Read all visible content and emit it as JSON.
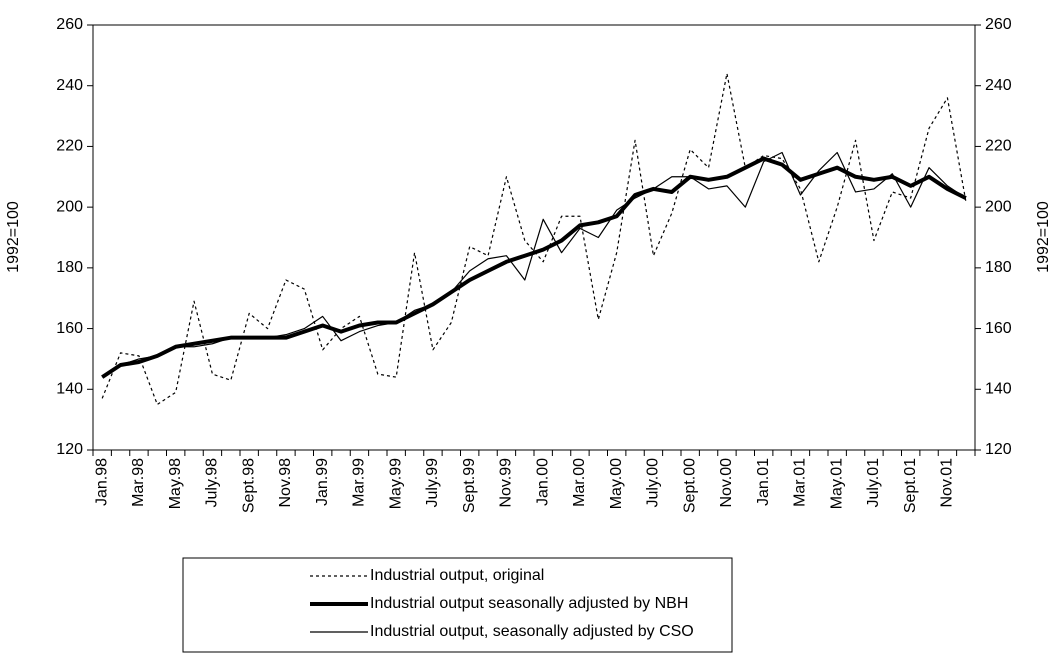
{
  "chart_data": {
    "type": "line",
    "categories": [
      "Jan.98",
      null,
      "Mar.98",
      null,
      "May.98",
      null,
      "July.98",
      null,
      "Sept.98",
      null,
      "Nov.98",
      null,
      "Jan.99",
      null,
      "Mar.99",
      null,
      "May.99",
      null,
      "July.99",
      null,
      "Sept.99",
      null,
      "Nov.99",
      null,
      "Jan.00",
      null,
      "Mar.00",
      null,
      "May.00",
      null,
      "July.00",
      null,
      "Sept.00",
      null,
      "Nov.00",
      null,
      "Jan.01",
      null,
      "Mar.01",
      null,
      "May.01",
      null,
      "July.01",
      null,
      "Sept.01",
      null,
      "Nov.01",
      null
    ],
    "ylabel": "1992=100",
    "y2label": "1992=100",
    "ylim": [
      120,
      260
    ],
    "yticks": [
      120,
      140,
      160,
      180,
      200,
      220,
      240,
      260
    ],
    "y2lim": [
      120,
      260
    ],
    "y2ticks": [
      120,
      140,
      160,
      180,
      200,
      220,
      240,
      260
    ],
    "grid": false,
    "series": [
      {
        "name": "Industrial output, original",
        "color": "#000000",
        "line_style": "dotted",
        "values": [
          137,
          152,
          151,
          135,
          139,
          169,
          145,
          143,
          165,
          160,
          176,
          173,
          153,
          160,
          164,
          145,
          144,
          185,
          153,
          162,
          187,
          184,
          210,
          189,
          182,
          197,
          197,
          163,
          185,
          222,
          184,
          198,
          219,
          213,
          244,
          213,
          217,
          216,
          206,
          182,
          200,
          222,
          189,
          205,
          203,
          226,
          236,
          202
        ]
      },
      {
        "name": "Industrial output seasonally adjusted by NBH",
        "color": "#000000",
        "line_style": "thick",
        "values": [
          144,
          148,
          149,
          151,
          154,
          155,
          156,
          157,
          157,
          157,
          157,
          159,
          161,
          159,
          161,
          162,
          162,
          165,
          168,
          172,
          176,
          179,
          182,
          184,
          186,
          189,
          194,
          195,
          197,
          204,
          206,
          205,
          210,
          209,
          210,
          213,
          216,
          214,
          209,
          211,
          213,
          210,
          209,
          210,
          207,
          210,
          206,
          203
        ]
      },
      {
        "name": "Industrial output, seasonally adjusted by CSO",
        "color": "#000000",
        "line_style": "thin",
        "values": [
          144,
          148,
          150,
          151,
          154,
          154,
          155,
          157,
          157,
          157,
          158,
          160,
          164,
          156,
          159,
          161,
          162,
          166,
          168,
          172,
          179,
          183,
          184,
          176,
          196,
          185,
          193,
          190,
          199,
          203,
          206,
          210,
          210,
          206,
          207,
          200,
          215,
          218,
          204,
          212,
          218,
          205,
          206,
          211,
          200,
          213,
          207,
          203
        ]
      }
    ]
  }
}
